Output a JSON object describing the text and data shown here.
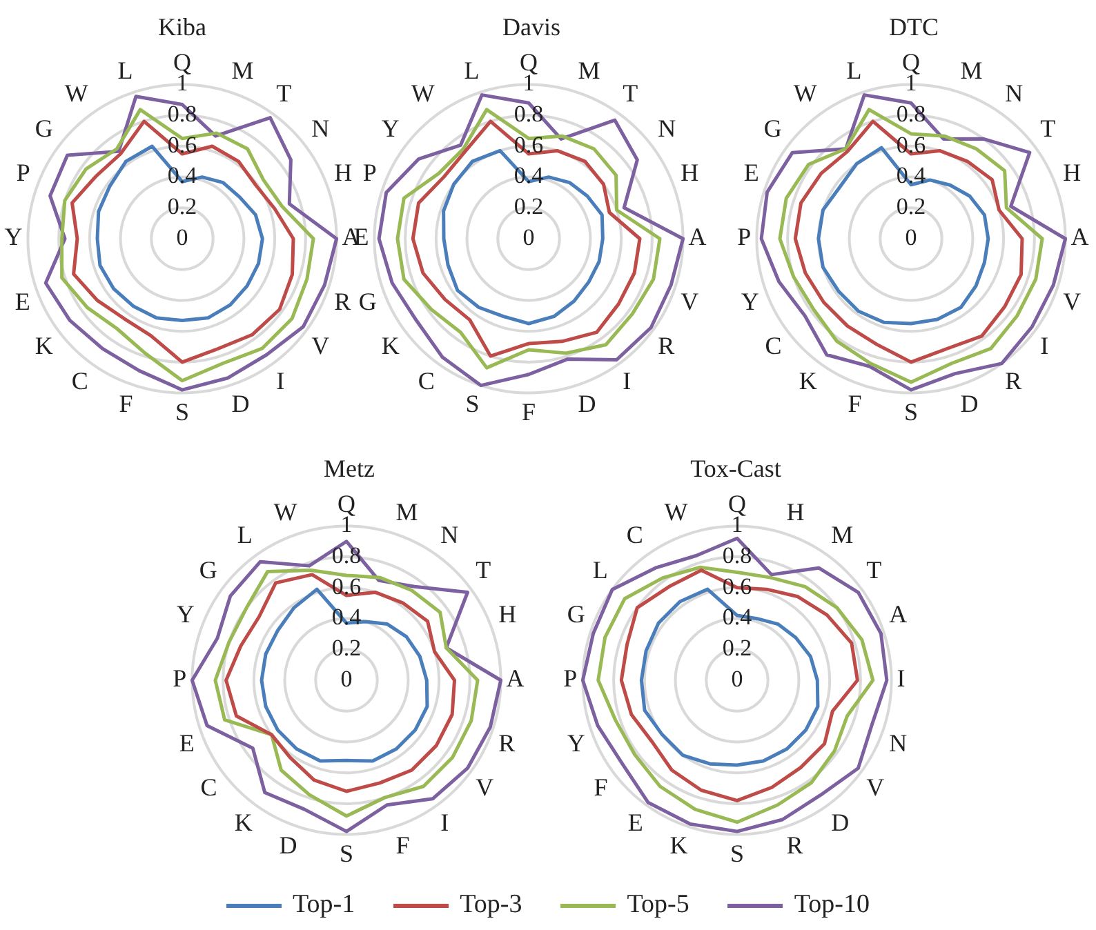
{
  "chart_data": [
    {
      "type": "radar",
      "title": "Kiba",
      "categories": [
        "Q",
        "M",
        "T",
        "N",
        "H",
        "A",
        "R",
        "V",
        "I",
        "D",
        "S",
        "F",
        "C",
        "K",
        "E",
        "Y",
        "P",
        "G",
        "W",
        "L"
      ],
      "ylim": [
        0,
        1
      ],
      "yticks": [
        0,
        0.2,
        0.4,
        0.6,
        0.8,
        1
      ],
      "grid": true,
      "series": [
        {
          "color": "#4a7ebb",
          "values": [
            0.37,
            0.42,
            0.45,
            0.46,
            0.5,
            0.52,
            0.52,
            0.52,
            0.53,
            0.54,
            0.53,
            0.54,
            0.54,
            0.55,
            0.56,
            0.55,
            0.57,
            0.58,
            0.62,
            0.63
          ]
        },
        {
          "color": "#be4b48",
          "values": [
            0.55,
            0.63,
            0.62,
            0.59,
            0.63,
            0.72,
            0.75,
            0.78,
            0.77,
            0.75,
            0.8,
            0.66,
            0.64,
            0.68,
            0.74,
            0.68,
            0.75,
            0.69,
            0.68,
            0.8
          ]
        },
        {
          "color": "#98b954",
          "values": [
            0.65,
            0.72,
            0.72,
            0.65,
            0.68,
            0.85,
            0.85,
            0.88,
            0.88,
            0.85,
            0.92,
            0.78,
            0.72,
            0.76,
            0.82,
            0.78,
            0.8,
            0.77,
            0.72,
            0.88
          ]
        },
        {
          "color": "#7d60a0",
          "values": [
            0.87,
            0.7,
            0.97,
            0.87,
            0.73,
            1,
            0.97,
            0.97,
            0.93,
            0.95,
            0.98,
            0.9,
            0.88,
            0.9,
            0.93,
            0.76,
            0.9,
            0.92,
            0.7,
            0.97
          ]
        }
      ]
    },
    {
      "type": "radar",
      "title": "Davis",
      "categories": [
        "Q",
        "M",
        "T",
        "N",
        "H",
        "A",
        "V",
        "R",
        "I",
        "D",
        "F",
        "S",
        "C",
        "K",
        "G",
        "E",
        "P",
        "Y",
        "W",
        "L"
      ],
      "ylim": [
        0,
        1
      ],
      "yticks": [
        0,
        0.2,
        0.4,
        0.6,
        0.8,
        1
      ],
      "grid": true,
      "series": [
        {
          "color": "#4a7ebb",
          "values": [
            0.37,
            0.42,
            0.45,
            0.47,
            0.5,
            0.48,
            0.48,
            0.48,
            0.5,
            0.53,
            0.55,
            0.53,
            0.55,
            0.57,
            0.55,
            0.55,
            0.58,
            0.6,
            0.62,
            0.6
          ]
        },
        {
          "color": "#be4b48",
          "values": [
            0.55,
            0.6,
            0.62,
            0.6,
            0.55,
            0.72,
            0.72,
            0.72,
            0.75,
            0.7,
            0.68,
            0.8,
            0.65,
            0.67,
            0.72,
            0.75,
            0.75,
            0.68,
            0.7,
            0.8
          ]
        },
        {
          "color": "#98b954",
          "values": [
            0.65,
            0.7,
            0.72,
            0.7,
            0.6,
            0.85,
            0.85,
            0.83,
            0.85,
            0.78,
            0.72,
            0.88,
            0.75,
            0.78,
            0.85,
            0.85,
            0.85,
            0.72,
            0.72,
            0.88
          ]
        },
        {
          "color": "#7d60a0",
          "values": [
            0.88,
            0.68,
            0.95,
            0.87,
            0.65,
            1,
            0.97,
            0.98,
            0.97,
            0.82,
            0.88,
            1,
            0.95,
            0.9,
            0.93,
            0.97,
            0.97,
            0.88,
            0.75,
            0.98
          ]
        }
      ]
    },
    {
      "type": "radar",
      "title": "DTC",
      "categories": [
        "Q",
        "M",
        "N",
        "T",
        "H",
        "A",
        "V",
        "I",
        "R",
        "D",
        "S",
        "F",
        "K",
        "C",
        "Y",
        "P",
        "E",
        "G",
        "W",
        "L"
      ],
      "ylim": [
        0,
        1
      ],
      "yticks": [
        0,
        0.2,
        0.4,
        0.6,
        0.8,
        1
      ],
      "grid": true,
      "series": [
        {
          "color": "#4a7ebb",
          "values": [
            0.35,
            0.4,
            0.43,
            0.47,
            0.5,
            0.5,
            0.5,
            0.52,
            0.55,
            0.55,
            0.55,
            0.57,
            0.58,
            0.58,
            0.6,
            0.6,
            0.6,
            0.57,
            0.6,
            0.62
          ]
        },
        {
          "color": "#be4b48",
          "values": [
            0.55,
            0.6,
            0.62,
            0.65,
            0.6,
            0.72,
            0.75,
            0.75,
            0.78,
            0.75,
            0.8,
            0.72,
            0.7,
            0.7,
            0.72,
            0.75,
            0.75,
            0.72,
            0.7,
            0.8
          ]
        },
        {
          "color": "#98b954",
          "values": [
            0.68,
            0.7,
            0.72,
            0.75,
            0.65,
            0.85,
            0.85,
            0.85,
            0.88,
            0.85,
            0.93,
            0.85,
            0.82,
            0.78,
            0.8,
            0.85,
            0.85,
            0.82,
            0.72,
            0.88
          ]
        },
        {
          "color": "#7d60a0",
          "values": [
            0.88,
            0.68,
            0.8,
            0.95,
            0.68,
            1,
            0.97,
            0.97,
            1,
            0.92,
            0.98,
            0.87,
            0.93,
            0.85,
            0.9,
            0.97,
            0.98,
            0.95,
            0.72,
            0.98
          ]
        }
      ]
    },
    {
      "type": "radar",
      "title": "Metz",
      "categories": [
        "Q",
        "M",
        "N",
        "T",
        "H",
        "A",
        "R",
        "V",
        "I",
        "F",
        "S",
        "D",
        "K",
        "C",
        "E",
        "P",
        "Y",
        "G",
        "L",
        "W"
      ],
      "ylim": [
        0,
        1
      ],
      "yticks": [
        0,
        0.2,
        0.4,
        0.6,
        0.8,
        1
      ],
      "grid": true,
      "series": [
        {
          "color": "#4a7ebb",
          "values": [
            0.37,
            0.4,
            0.45,
            0.48,
            0.5,
            0.52,
            0.55,
            0.55,
            0.55,
            0.55,
            0.52,
            0.55,
            0.55,
            0.55,
            0.55,
            0.55,
            0.55,
            0.55,
            0.58,
            0.62
          ]
        },
        {
          "color": "#be4b48",
          "values": [
            0.55,
            0.6,
            0.62,
            0.65,
            0.6,
            0.7,
            0.72,
            0.72,
            0.72,
            0.7,
            0.72,
            0.68,
            0.62,
            0.6,
            0.75,
            0.78,
            0.72,
            0.7,
            0.78,
            0.72
          ]
        },
        {
          "color": "#98b954",
          "values": [
            0.68,
            0.7,
            0.72,
            0.75,
            0.68,
            0.85,
            0.85,
            0.85,
            0.85,
            0.8,
            0.88,
            0.78,
            0.72,
            0.6,
            0.83,
            0.85,
            0.8,
            0.8,
            0.87,
            0.75
          ]
        },
        {
          "color": "#7d60a0",
          "values": [
            0.9,
            0.68,
            0.75,
            0.97,
            0.68,
            1,
            0.98,
            0.97,
            0.95,
            0.85,
            0.98,
            0.88,
            0.9,
            0.75,
            0.95,
            1,
            0.88,
            0.93,
            0.95,
            0.78
          ]
        }
      ]
    },
    {
      "type": "radar",
      "title": "Tox-Cast",
      "categories": [
        "Q",
        "H",
        "M",
        "T",
        "A",
        "I",
        "N",
        "V",
        "D",
        "R",
        "S",
        "K",
        "E",
        "F",
        "Y",
        "P",
        "G",
        "L",
        "C",
        "W"
      ],
      "ylim": [
        0,
        1
      ],
      "yticks": [
        0,
        0.2,
        0.4,
        0.6,
        0.8,
        1
      ],
      "grid": true,
      "legend": "bottom",
      "series": [
        {
          "name": "Top-1",
          "color": "#4a7ebb",
          "values": [
            0.42,
            0.42,
            0.45,
            0.47,
            0.5,
            0.52,
            0.55,
            0.55,
            0.55,
            0.55,
            0.55,
            0.57,
            0.6,
            0.6,
            0.63,
            0.62,
            0.62,
            0.63,
            0.63,
            0.62
          ]
        },
        {
          "name": "Top-3",
          "color": "#be4b48",
          "values": [
            0.6,
            0.62,
            0.67,
            0.72,
            0.78,
            0.78,
            0.65,
            0.7,
            0.7,
            0.73,
            0.78,
            0.75,
            0.72,
            0.68,
            0.72,
            0.75,
            0.75,
            0.8,
            0.75,
            0.75
          ]
        },
        {
          "name": "Top-5",
          "color": "#98b954",
          "values": [
            0.7,
            0.7,
            0.75,
            0.8,
            0.85,
            0.88,
            0.75,
            0.78,
            0.82,
            0.85,
            0.92,
            0.88,
            0.85,
            0.82,
            0.83,
            0.9,
            0.9,
            0.9,
            0.82,
            0.77
          ]
        },
        {
          "name": "Top-10",
          "color": "#7d60a0",
          "values": [
            0.92,
            0.72,
            0.9,
            0.97,
            0.98,
            0.97,
            0.92,
            0.97,
            0.92,
            0.95,
            0.98,
            0.98,
            0.98,
            0.92,
            0.95,
            1,
            0.98,
            1,
            0.9,
            0.85
          ]
        }
      ]
    }
  ]
}
